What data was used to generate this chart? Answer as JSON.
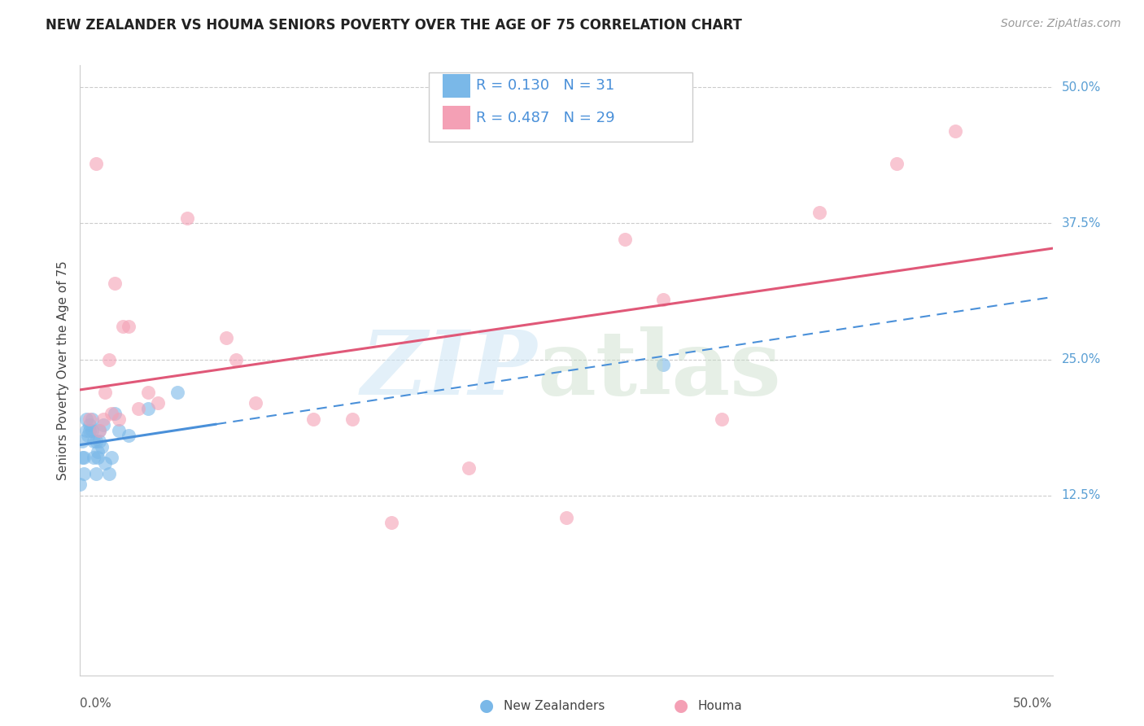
{
  "title": "NEW ZEALANDER VS HOUMA SENIORS POVERTY OVER THE AGE OF 75 CORRELATION CHART",
  "source": "Source: ZipAtlas.com",
  "ylabel": "Seniors Poverty Over the Age of 75",
  "xmin": 0.0,
  "xmax": 0.5,
  "ymin": -0.04,
  "ymax": 0.52,
  "yticks": [
    0.125,
    0.25,
    0.375,
    0.5
  ],
  "ytick_labels": [
    "12.5%",
    "25.0%",
    "37.5%",
    "50.0%"
  ],
  "nz_R": "0.130",
  "nz_N": "31",
  "houma_R": "0.487",
  "houma_N": "29",
  "nz_color": "#7ab8e8",
  "houma_color": "#f4a0b5",
  "nz_line_color": "#4a90d9",
  "houma_line_color": "#e05878",
  "background_color": "#ffffff",
  "legend_labels": [
    "New Zealanders",
    "Houma"
  ],
  "nz_x": [
    0.0,
    0.001,
    0.001,
    0.002,
    0.002,
    0.003,
    0.003,
    0.004,
    0.005,
    0.005,
    0.006,
    0.006,
    0.007,
    0.007,
    0.008,
    0.008,
    0.009,
    0.009,
    0.01,
    0.01,
    0.011,
    0.012,
    0.013,
    0.015,
    0.016,
    0.018,
    0.02,
    0.025,
    0.035,
    0.05,
    0.3
  ],
  "nz_y": [
    0.135,
    0.175,
    0.16,
    0.145,
    0.16,
    0.195,
    0.185,
    0.18,
    0.19,
    0.185,
    0.195,
    0.185,
    0.175,
    0.16,
    0.145,
    0.175,
    0.165,
    0.16,
    0.185,
    0.175,
    0.17,
    0.19,
    0.155,
    0.145,
    0.16,
    0.2,
    0.185,
    0.18,
    0.205,
    0.22,
    0.245
  ],
  "houma_x": [
    0.005,
    0.008,
    0.01,
    0.012,
    0.013,
    0.015,
    0.016,
    0.018,
    0.02,
    0.022,
    0.025,
    0.03,
    0.035,
    0.04,
    0.055,
    0.075,
    0.08,
    0.09,
    0.12,
    0.14,
    0.16,
    0.2,
    0.25,
    0.28,
    0.3,
    0.33,
    0.38,
    0.42,
    0.45
  ],
  "houma_y": [
    0.195,
    0.43,
    0.185,
    0.195,
    0.22,
    0.25,
    0.2,
    0.32,
    0.195,
    0.28,
    0.28,
    0.205,
    0.22,
    0.21,
    0.38,
    0.27,
    0.25,
    0.21,
    0.195,
    0.195,
    0.1,
    0.15,
    0.105,
    0.36,
    0.305,
    0.195,
    0.385,
    0.43,
    0.46
  ]
}
